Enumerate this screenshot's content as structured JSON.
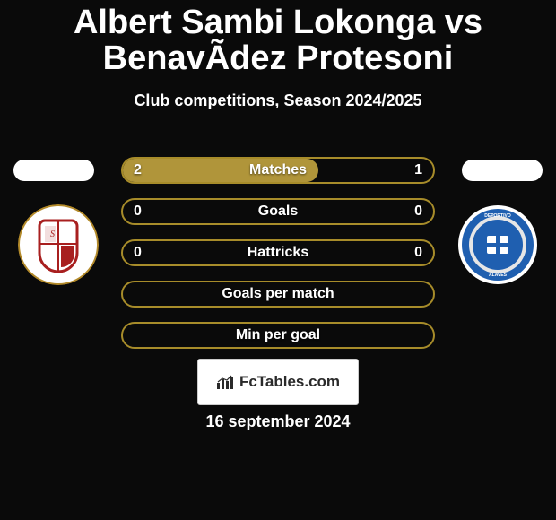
{
  "title": "Albert Sambi Lokonga vs BenavÃ­dez Protesoni",
  "title_fontsize": 38,
  "subtitle": "Club competitions, Season 2024/2025",
  "subtitle_fontsize": 18,
  "colors": {
    "background": "#0a0a0a",
    "title_text": "#ffffff",
    "stat_text": "#ffffff",
    "bar_border": "#a78c2a",
    "bar_fill": "#b0953a",
    "pill_bg": "#ffffff",
    "footer_bg": "#ffffff"
  },
  "players": {
    "left": {
      "name": "Albert Sambi Lokonga",
      "club_logo": {
        "bg": "#ffffff",
        "ring": "#b38a2a",
        "crest_border": "#a81f1f",
        "crest_fill": "#ffffff",
        "crest_accent": "#a81f1f"
      }
    },
    "right": {
      "name": "BenavÃ­dez Protesoni",
      "club_logo": {
        "bg": "#ffffff",
        "outer": "#1f5fb0",
        "mid": "#e6e6e6",
        "inner": "#1f5fb0",
        "flag_bg": "#ffffff",
        "flag_cross": "#1f5fb0"
      }
    }
  },
  "stats": {
    "label_fontsize": 16,
    "value_fontsize": 16,
    "rows": [
      {
        "label": "Matches",
        "left": "2",
        "right": "1",
        "left_pct": 63,
        "right_pct": 37,
        "show_fill": true
      },
      {
        "label": "Goals",
        "left": "0",
        "right": "0",
        "left_pct": 50,
        "right_pct": 50,
        "show_fill": false
      },
      {
        "label": "Hattricks",
        "left": "0",
        "right": "0",
        "left_pct": 50,
        "right_pct": 50,
        "show_fill": false
      },
      {
        "label": "Goals per match",
        "left": "",
        "right": "",
        "left_pct": 50,
        "right_pct": 50,
        "show_fill": false
      },
      {
        "label": "Min per goal",
        "left": "",
        "right": "",
        "left_pct": 50,
        "right_pct": 50,
        "show_fill": false
      }
    ]
  },
  "footer": {
    "brand": "FcTables.com",
    "brand_fontsize": 17,
    "date": "16 september 2024",
    "date_fontsize": 18
  }
}
